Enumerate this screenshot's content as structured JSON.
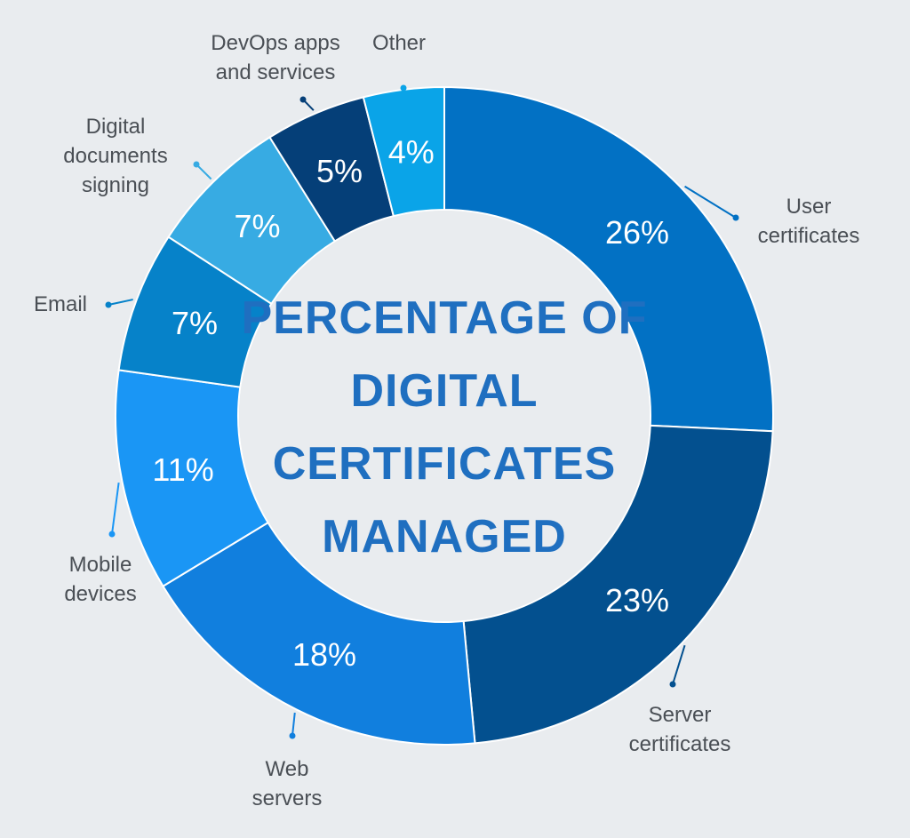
{
  "chart_data": {
    "type": "pie",
    "donut": true,
    "title_lines": [
      "PERCENTAGE OF",
      "DIGITAL",
      "CERTIFICATES",
      "MANAGED"
    ],
    "slices": [
      {
        "name": "User certificates",
        "label_lines": [
          "User",
          "certificates"
        ],
        "value": 26,
        "value_label": "26%",
        "color": "#0271c4"
      },
      {
        "name": "Server certificates",
        "label_lines": [
          "Server",
          "certificates"
        ],
        "value": 23,
        "value_label": "23%",
        "color": "#03508f"
      },
      {
        "name": "Web servers",
        "label_lines": [
          "Web",
          "servers"
        ],
        "value": 18,
        "value_label": "18%",
        "color": "#117fde"
      },
      {
        "name": "Mobile devices",
        "label_lines": [
          "Mobile",
          "devices"
        ],
        "value": 11,
        "value_label": "11%",
        "color": "#1a96f5"
      },
      {
        "name": "Email",
        "label_lines": [
          "Email"
        ],
        "value": 7,
        "value_label": "7%",
        "color": "#0682c9"
      },
      {
        "name": "Digital documents signing",
        "label_lines": [
          "Digital",
          "documents",
          "signing"
        ],
        "value": 7,
        "value_label": "7%",
        "color": "#37abe3"
      },
      {
        "name": "DevOps apps and services",
        "label_lines": [
          "DevOps apps",
          "and services"
        ],
        "value": 5,
        "value_label": "5%",
        "color": "#053f78"
      },
      {
        "name": "Other",
        "label_lines": [
          "Other"
        ],
        "value": 4,
        "value_label": "4%",
        "color": "#0aa4e8"
      }
    ],
    "colors": {
      "background": "#e9ecef",
      "center_fill": "#e9ecef",
      "title": "#1f6fc0",
      "category_text": "#4a4f55"
    }
  }
}
